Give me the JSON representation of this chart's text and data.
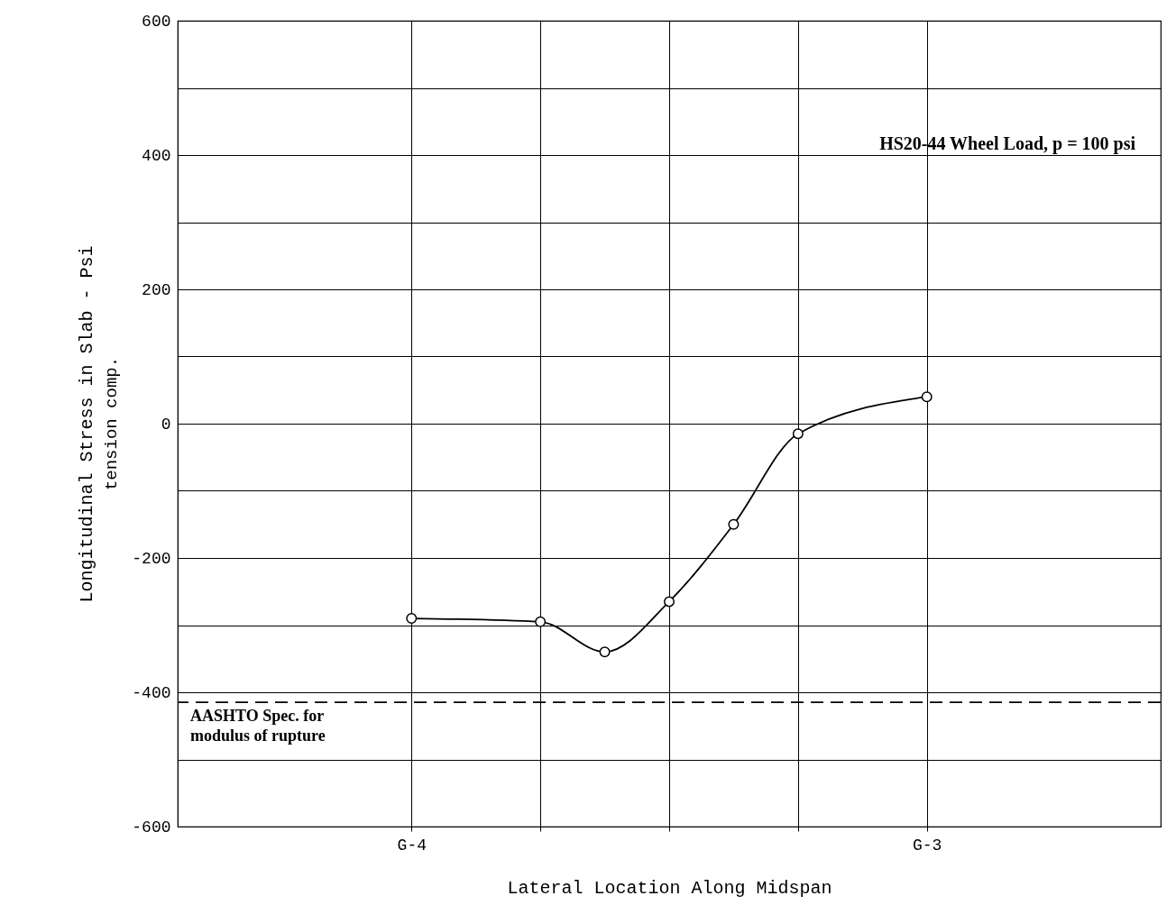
{
  "chart_data": {
    "type": "line",
    "xlabel": "Lateral Location Along Midspan",
    "ylabel": "Longitudinal Stress in Slab - Psi",
    "categories": [
      "G-4",
      null,
      null,
      null,
      null,
      null,
      null,
      null,
      "G-3"
    ],
    "series": [
      {
        "color": "#000000",
        "values": [
          -290,
          null,
          -295,
          -340,
          -265,
          -150,
          -15,
          null,
          40
        ]
      }
    ],
    "ylim": [
      -600,
      600
    ],
    "yticks": [
      -600,
      {
        "value": -500,
        "label": null
      },
      -400,
      {
        "value": -300,
        "label": null
      },
      -200,
      {
        "value": -100,
        "label": null
      },
      0,
      {
        "value": 100,
        "label": null
      },
      200,
      {
        "value": 300,
        "label": null
      },
      400,
      {
        "value": 500,
        "label": null
      },
      600
    ],
    "ref_lines": [
      {
        "axis": "y",
        "value": -415,
        "label": "AASHTO Spec. for\nmodulus of rupture",
        "color": "#000000",
        "line_style": "dashed"
      }
    ],
    "annotations": [
      "HS20-44 Wheel Load, p = 100 psi",
      "tension  comp."
    ],
    "grid": true,
    "marker": "circle",
    "line_style": "solid"
  }
}
